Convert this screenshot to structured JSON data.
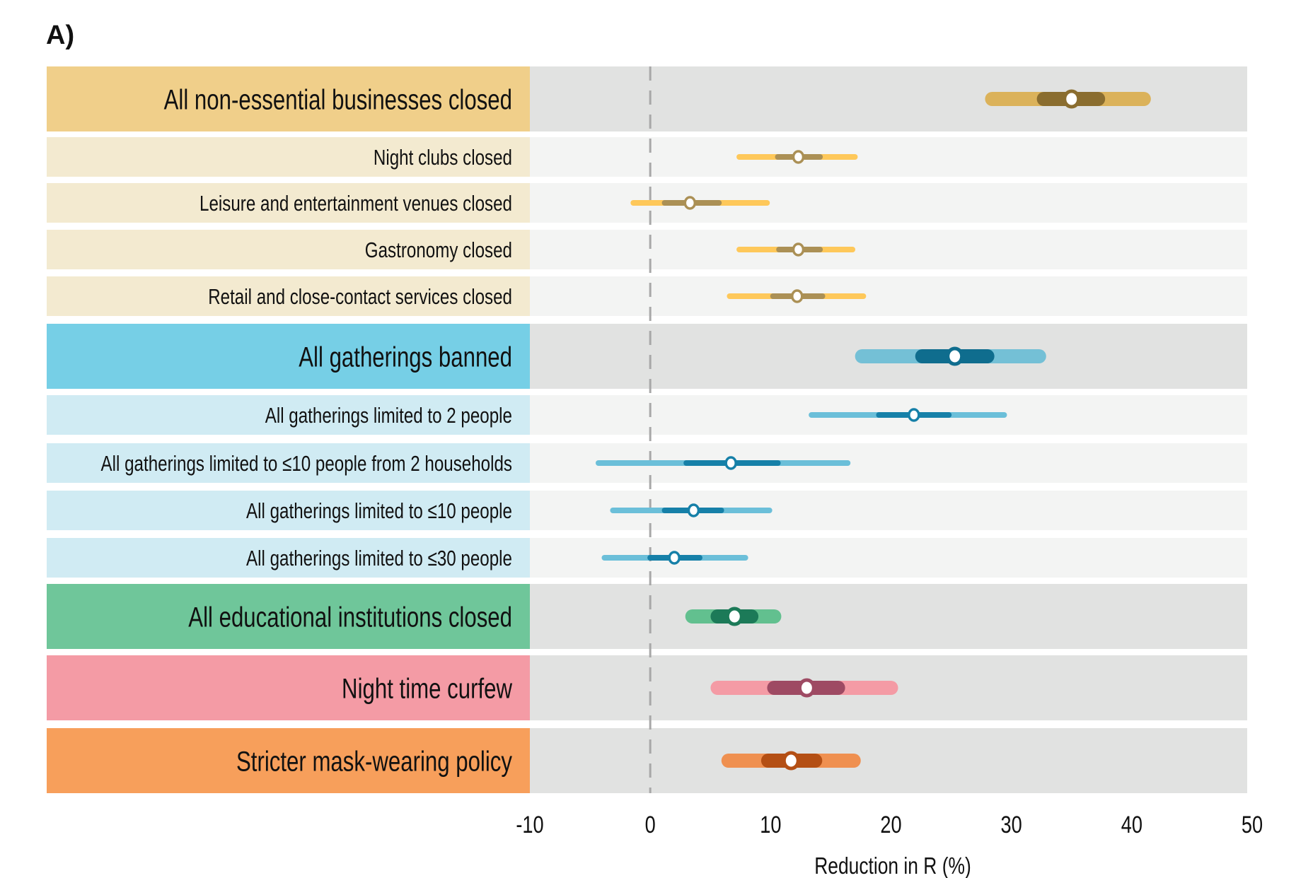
{
  "chart_data": {
    "type": "forest",
    "panel_label": "A)",
    "xlabel": "Reduction in R (%)",
    "xlim": [
      -10,
      50
    ],
    "xticks": [
      -10,
      0,
      10,
      20,
      30,
      40,
      50
    ],
    "reference_line": 0,
    "rows": [
      {
        "label": "All non-essential businesses closed",
        "level": "group",
        "group": "business",
        "median": 35.0,
        "ci50": [
          32.7,
          37.2
        ],
        "ci95": [
          28.4,
          41.0
        ]
      },
      {
        "label": "Night clubs closed",
        "level": "sub",
        "group": "business",
        "median": 12.3,
        "ci50": [
          10.6,
          14.1
        ],
        "ci95": [
          7.4,
          17.0
        ]
      },
      {
        "label": "Leisure and entertainment venues closed",
        "level": "sub",
        "group": "business",
        "median": 3.3,
        "ci50": [
          1.2,
          5.7
        ],
        "ci95": [
          -1.4,
          9.7
        ]
      },
      {
        "label": "Gastronomy closed",
        "level": "sub",
        "group": "business",
        "median": 12.3,
        "ci50": [
          10.7,
          14.1
        ],
        "ci95": [
          7.4,
          16.8
        ]
      },
      {
        "label": "Retail and close-contact services closed",
        "level": "sub",
        "group": "business",
        "median": 12.2,
        "ci50": [
          10.2,
          14.3
        ],
        "ci95": [
          6.6,
          17.7
        ]
      },
      {
        "label": "All gatherings banned",
        "level": "group",
        "group": "gatherings",
        "median": 25.3,
        "ci50": [
          22.6,
          28.0
        ],
        "ci95": [
          17.6,
          32.3
        ]
      },
      {
        "label": "All gatherings limited to 2 people",
        "level": "sub",
        "group": "gatherings",
        "median": 21.9,
        "ci50": [
          19.0,
          24.8
        ],
        "ci95": [
          13.4,
          29.4
        ]
      },
      {
        "label": "All gatherings limited to ≤10 people from 2 households",
        "level": "sub",
        "group": "gatherings",
        "median": 6.7,
        "ci50": [
          3.0,
          10.6
        ],
        "ci95": [
          -4.3,
          16.4
        ]
      },
      {
        "label": "All gatherings limited to ≤10 people",
        "level": "sub",
        "group": "gatherings",
        "median": 3.6,
        "ci50": [
          1.2,
          5.9
        ],
        "ci95": [
          -3.1,
          9.9
        ]
      },
      {
        "label": "All gatherings limited to ≤30 people",
        "level": "sub",
        "group": "gatherings",
        "median": 2.0,
        "ci50": [
          0.0,
          4.1
        ],
        "ci95": [
          -3.8,
          7.9
        ]
      },
      {
        "label": "All educational institutions closed",
        "level": "group",
        "group": "education",
        "median": 7.0,
        "ci50": [
          5.6,
          8.4
        ],
        "ci95": [
          3.5,
          10.3
        ]
      },
      {
        "label": "Night time curfew",
        "level": "group",
        "group": "curfew",
        "median": 13.0,
        "ci50": [
          10.3,
          15.6
        ],
        "ci95": [
          5.6,
          20.0
        ]
      },
      {
        "label": "Stricter mask-wearing policy",
        "level": "group",
        "group": "mask",
        "median": 11.7,
        "ci50": [
          9.8,
          13.7
        ],
        "ci95": [
          6.5,
          16.9
        ]
      }
    ],
    "colors": {
      "business": {
        "group_bg": "#f0cf8a",
        "sub_bg": "#f3ead0",
        "group_outer": "#dbb25a",
        "group_inner": "#8a6d2f",
        "sub_outer": "#fec85a",
        "sub_inner": "#ab9055"
      },
      "gatherings": {
        "group_bg": "#76cfe6",
        "sub_bg": "#d0ebf3",
        "group_outer": "#74c0d6",
        "group_inner": "#0f6d8e",
        "sub_outer": "#6bbfd9",
        "sub_inner": "#1680a8"
      },
      "education": {
        "group_bg": "#6fc69a",
        "group_outer": "#62c08f",
        "group_inner": "#1c7a58"
      },
      "curfew": {
        "group_bg": "#f49ba5",
        "group_outer": "#f49ba5",
        "group_inner": "#9e4a63"
      },
      "mask": {
        "group_bg": "#f79f5b",
        "group_outer": "#ef9050",
        "group_inner": "#b44f14"
      },
      "panel_group": "#e1e2e1",
      "panel_sub": "#f3f4f3",
      "reference": "#a8a8a8"
    }
  }
}
